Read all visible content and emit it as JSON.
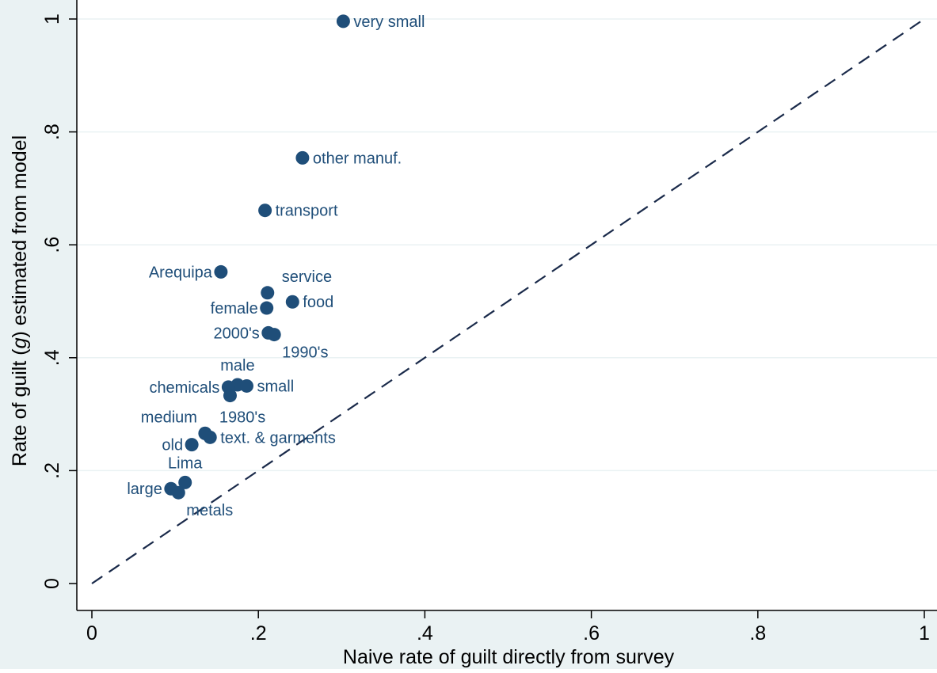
{
  "chart_data": {
    "type": "scatter",
    "xlabel": "Naive rate of guilt directly from survey",
    "ylabel_parts": [
      "Rate of guilt (",
      "g",
      ") estimated from model"
    ],
    "xlim": [
      0,
      1
    ],
    "ylim": [
      0,
      1
    ],
    "xticks": [
      {
        "value": 0,
        "label": "0"
      },
      {
        "value": 0.2,
        "label": ".2"
      },
      {
        "value": 0.4,
        "label": ".4"
      },
      {
        "value": 0.6,
        "label": ".6"
      },
      {
        "value": 0.8,
        "label": ".8"
      },
      {
        "value": 1,
        "label": "1"
      }
    ],
    "yticks": [
      {
        "value": 0,
        "label": "0"
      },
      {
        "value": 0.2,
        "label": ".2"
      },
      {
        "value": 0.4,
        "label": ".4"
      },
      {
        "value": 0.6,
        "label": ".6"
      },
      {
        "value": 0.8,
        "label": ".8"
      },
      {
        "value": 1,
        "label": "1"
      }
    ],
    "grid": "horizontal",
    "reference_line": {
      "style": "dashed",
      "from": [
        0,
        0
      ],
      "to": [
        1,
        1
      ]
    },
    "point_color": "#1f4e79",
    "background_color": "#ffffff",
    "outer_background_color": "#eaf2f3",
    "points": [
      {
        "label": "very small",
        "x": 0.302,
        "y": 0.996,
        "pos": "right"
      },
      {
        "label": "other manuf.",
        "x": 0.253,
        "y": 0.754,
        "pos": "right"
      },
      {
        "label": "transport",
        "x": 0.208,
        "y": 0.661,
        "pos": "right"
      },
      {
        "label": "Arequipa",
        "x": 0.155,
        "y": 0.552,
        "pos": "left"
      },
      {
        "label": "service",
        "x": 0.211,
        "y": 0.515,
        "pos": "above-right"
      },
      {
        "label": "food",
        "x": 0.241,
        "y": 0.499,
        "pos": "right"
      },
      {
        "label": "female",
        "x": 0.21,
        "y": 0.488,
        "pos": "left"
      },
      {
        "label": "2000's",
        "x": 0.212,
        "y": 0.444,
        "pos": "left"
      },
      {
        "label": "1990's",
        "x": 0.219,
        "y": 0.441,
        "pos": "below-right"
      },
      {
        "label": "male",
        "x": 0.175,
        "y": 0.352,
        "pos": "above"
      },
      {
        "label": "chemicals",
        "x": 0.164,
        "y": 0.348,
        "pos": "left"
      },
      {
        "label": "small",
        "x": 0.186,
        "y": 0.35,
        "pos": "right"
      },
      {
        "label": "",
        "x": 0.166,
        "y": 0.333,
        "pos": "none"
      },
      {
        "label": "1980's",
        "x": 0.136,
        "y": 0.266,
        "pos": "above-right"
      },
      {
        "label": "medium",
        "x": 0.136,
        "y": 0.266,
        "pos": "above-left"
      },
      {
        "label": "text. & garments",
        "x": 0.142,
        "y": 0.259,
        "pos": "right"
      },
      {
        "label": "old",
        "x": 0.12,
        "y": 0.246,
        "pos": "left"
      },
      {
        "label": "Lima",
        "x": 0.112,
        "y": 0.179,
        "pos": "above"
      },
      {
        "label": "large",
        "x": 0.095,
        "y": 0.168,
        "pos": "left"
      },
      {
        "label": "metals",
        "x": 0.104,
        "y": 0.161,
        "pos": "below-right"
      }
    ]
  }
}
